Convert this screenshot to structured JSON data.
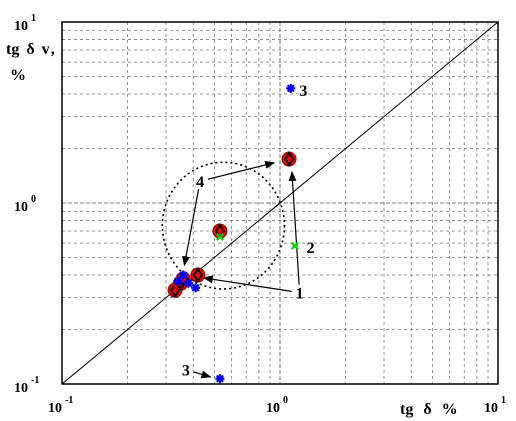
{
  "chart_data": {
    "type": "scatter",
    "xscale": "log",
    "yscale": "log",
    "xlim": [
      0.1,
      10
    ],
    "ylim": [
      0.1,
      10
    ],
    "grid": true,
    "xticks": [
      {
        "value": 0.1,
        "base": "10",
        "exp": "-1"
      },
      {
        "value": 1,
        "base": "10",
        "exp": "0"
      },
      {
        "value": 10,
        "base": "10",
        "exp": "1"
      }
    ],
    "yticks": [
      {
        "value": 0.1,
        "base": "10",
        "exp": "-1"
      },
      {
        "value": 1,
        "base": "10",
        "exp": "0"
      },
      {
        "value": 10,
        "base": "10",
        "exp": "1"
      }
    ],
    "xlabel": [
      "tg",
      "δ",
      "%"
    ],
    "ylabel": [
      "tg",
      "δ",
      "v",
      ",",
      "%"
    ],
    "reference_line": [
      [
        0.1,
        0.1
      ],
      [
        10,
        10
      ]
    ],
    "ellipse": {
      "center": [
        0.55,
        0.75
      ],
      "rx_decades": 0.28,
      "ry_decades": 0.35
    },
    "series": [
      {
        "color": "#ff0000",
        "marker": "circle-diamond",
        "x": [
          0.33,
          0.35,
          0.36,
          0.42,
          0.53,
          1.1
        ],
        "y": [
          0.33,
          0.36,
          0.38,
          0.4,
          0.7,
          1.75
        ]
      },
      {
        "color": "#0000ff",
        "marker": "star",
        "x": [
          0.34,
          0.36,
          0.38,
          0.41,
          0.53,
          1.12
        ],
        "y": [
          0.37,
          0.4,
          0.36,
          0.34,
          0.107,
          4.3
        ]
      },
      {
        "color": "#00cc00",
        "marker": "x",
        "x": [
          0.53,
          1.17
        ],
        "y": [
          0.65,
          0.58
        ]
      }
    ],
    "annotations": [
      {
        "text": "1",
        "at": [
          1.23,
          0.32
        ],
        "arrows": [
          [
            0.42,
            0.39
          ],
          [
            1.13,
            1.6
          ]
        ]
      },
      {
        "text": "2",
        "at": [
          1.38,
          0.57
        ],
        "arrows": []
      },
      {
        "text": "3",
        "at": [
          1.28,
          4.2
        ],
        "arrows": []
      },
      {
        "text": "3",
        "at": [
          0.37,
          0.12
        ],
        "arrows": [
          [
            0.51,
            0.107
          ]
        ]
      },
      {
        "text": "4",
        "at": [
          0.43,
          1.32
        ],
        "arrows": [
          [
            0.36,
            0.42
          ],
          [
            1.0,
            1.7
          ]
        ]
      }
    ]
  }
}
